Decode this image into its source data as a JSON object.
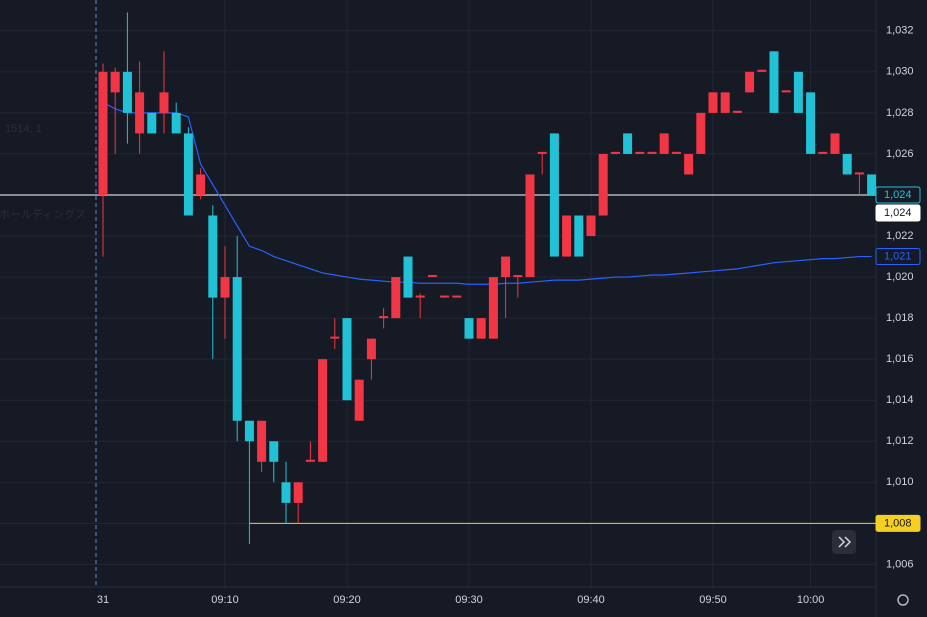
{
  "chart_data": {
    "type": "candlestick",
    "watermark": [
      "1514, 1",
      "石ホールディングス"
    ],
    "categories": [
      "31",
      null,
      null,
      null,
      null,
      null,
      null,
      null,
      null,
      null,
      "09:10",
      null,
      null,
      null,
      null,
      null,
      null,
      null,
      null,
      null,
      "09:20",
      null,
      null,
      null,
      null,
      null,
      null,
      null,
      null,
      null,
      "09:30",
      null,
      null,
      null,
      null,
      null,
      null,
      null,
      null,
      null,
      "09:40",
      null,
      null,
      null,
      null,
      null,
      null,
      null,
      null,
      null,
      "09:50",
      null,
      null,
      null,
      null,
      null,
      null,
      null,
      "10:00",
      null,
      null,
      null,
      null,
      null
    ],
    "up_color": "#f23645",
    "down_color": "#22c2d6",
    "open": [
      1024,
      1029,
      1030,
      1027,
      1028,
      1028,
      1028,
      1027,
      1024,
      1023,
      1019,
      1020,
      1013,
      1011,
      1012,
      1010,
      1009,
      1011,
      1011,
      1017,
      1018,
      1013,
      1016,
      1018,
      1018,
      1021,
      1019,
      1020,
      1019,
      1019,
      1018,
      1017,
      1017,
      1020,
      1020,
      1020,
      1026,
      1027,
      1021,
      1023,
      1022,
      1023,
      1026,
      1027,
      1026,
      1026,
      1026,
      1026,
      1025,
      1026,
      1028,
      1028,
      1028,
      1029,
      1030,
      1031,
      1029,
      1030,
      1029,
      1026,
      1026,
      1026,
      1025,
      1025
    ],
    "high": [
      1030.4,
      1030.2,
      1032.9,
      1030.5,
      1028,
      1031,
      1028.5,
      1027.3,
      1025.3,
      1023.5,
      1021.5,
      1022,
      1013,
      1013,
      1012,
      1011,
      1010,
      1012,
      1016,
      1018,
      1018,
      1015,
      1017,
      1018.5,
      1020,
      1021,
      1019.2,
      1020.1,
      1019.1,
      1019.1,
      1018,
      1018,
      1020,
      1021,
      1020.1,
      1025,
      1026.1,
      1027,
      1023,
      1023,
      1023,
      1026,
      1026.1,
      1027,
      1026.1,
      1026.1,
      1027,
      1026.1,
      1026,
      1028,
      1029,
      1029,
      1028.1,
      1030,
      1030.1,
      1031,
      1029.1,
      1030,
      1029,
      1026.1,
      1027,
      1026,
      1025.1,
      1025
    ],
    "low": [
      1021,
      1026,
      1026.5,
      1026,
      1027,
      1027,
      1027,
      1023,
      1023.8,
      1016,
      1017,
      1012,
      1007,
      1010.5,
      1010,
      1008,
      1008,
      1011,
      1011,
      1016.5,
      1014,
      1013,
      1015,
      1017.5,
      1018,
      1019,
      1018,
      1020,
      1019,
      1019,
      1017,
      1017,
      1017,
      1018,
      1019,
      1020,
      1025,
      1021,
      1021,
      1021,
      1022,
      1023,
      1026,
      1026,
      1026,
      1026,
      1026,
      1026,
      1025,
      1026,
      1028,
      1028,
      1028,
      1029,
      1030,
      1028,
      1029,
      1028,
      1026,
      1026,
      1026,
      1025,
      1024,
      1024
    ],
    "close": [
      1030,
      1030,
      1028,
      1029,
      1027,
      1029,
      1027,
      1023,
      1025,
      1019,
      1020,
      1013,
      1012,
      1013,
      1011,
      1009,
      1010,
      1011.1,
      1016,
      1017.1,
      1014,
      1015,
      1017,
      1018.1,
      1020,
      1019,
      1019.1,
      1020.1,
      1019.1,
      1019.1,
      1017,
      1018,
      1020,
      1021,
      1020.1,
      1025,
      1026.1,
      1021,
      1023,
      1021,
      1023,
      1026,
      1026.1,
      1026,
      1026.1,
      1026.1,
      1027,
      1026.1,
      1026,
      1028,
      1029,
      1029,
      1028.1,
      1030,
      1030.1,
      1028,
      1029.1,
      1028,
      1026,
      1026.1,
      1027,
      1025,
      1025.1,
      1024
    ],
    "vwap": {
      "color": "#2962ff",
      "values": [
        1028.5,
        1028.2,
        1028,
        1028,
        1028,
        1028,
        1028,
        1027.8,
        1025.5,
        1024.5,
        1023.5,
        1022.5,
        1021.5,
        1021.3,
        1021,
        1020.8,
        1020.6,
        1020.4,
        1020.2,
        1020.1,
        1020,
        1019.9,
        1019.85,
        1019.8,
        1019.75,
        1019.75,
        1019.7,
        1019.7,
        1019.7,
        1019.7,
        1019.65,
        1019.65,
        1019.65,
        1019.7,
        1019.7,
        1019.75,
        1019.8,
        1019.85,
        1019.85,
        1019.85,
        1019.9,
        1019.95,
        1020,
        1020,
        1020.05,
        1020.1,
        1020.1,
        1020.15,
        1020.2,
        1020.25,
        1020.3,
        1020.35,
        1020.4,
        1020.5,
        1020.6,
        1020.7,
        1020.75,
        1020.8,
        1020.85,
        1020.9,
        1020.9,
        1020.95,
        1021,
        1021
      ]
    },
    "price_lines": [
      {
        "value": 1024,
        "color": "#ffffff"
      },
      {
        "value": 1008,
        "color": "#f5d020"
      }
    ],
    "badges": [
      {
        "value": 1024,
        "label": "1,024",
        "style": "last"
      },
      {
        "value": 1024,
        "label": "1,024",
        "style": "white"
      },
      {
        "value": 1021,
        "label": "1,021",
        "style": "vwap"
      },
      {
        "value": 1008,
        "label": "1,008",
        "style": "yellow"
      }
    ],
    "ylim": [
      1004.9,
      1033.5
    ],
    "yticks": [
      {
        "value": 1006,
        "label": "1,006"
      },
      {
        "value": 1008,
        "label": "1,008"
      },
      {
        "value": 1010,
        "label": "1,010"
      },
      {
        "value": 1012,
        "label": "1,012"
      },
      {
        "value": 1014,
        "label": "1,014"
      },
      {
        "value": 1016,
        "label": "1,016"
      },
      {
        "value": 1018,
        "label": "1,018"
      },
      {
        "value": 1020,
        "label": "1,020"
      },
      {
        "value": 1022,
        "label": "1,022"
      },
      {
        "value": 1024,
        "label": "1,024"
      },
      {
        "value": 1026,
        "label": "1,026"
      },
      {
        "value": 1028,
        "label": "1,028"
      },
      {
        "value": 1030,
        "label": "1,030"
      },
      {
        "value": 1032,
        "label": "1,032"
      }
    ],
    "grid": true
  }
}
